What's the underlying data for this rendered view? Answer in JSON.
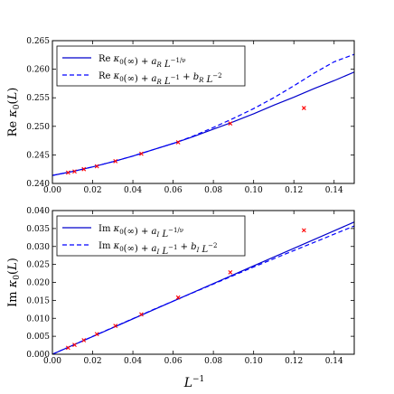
{
  "figure": {
    "xlabel_main": "L",
    "xlabel_exp": "−1"
  },
  "chart_data": [
    {
      "type": "line",
      "title": "",
      "xlabel": "",
      "ylabel": "Re κ0(L)",
      "xlim": [
        0.0,
        0.15
      ],
      "ylim": [
        0.24,
        0.265
      ],
      "xticks": [
        "0.00",
        "0.02",
        "0.04",
        "0.06",
        "0.08",
        "0.10",
        "0.12",
        "0.14"
      ],
      "xtick_values": [
        0.0,
        0.02,
        0.04,
        0.06,
        0.08,
        0.1,
        0.12,
        0.14
      ],
      "yticks": [
        "0.240",
        "0.245",
        "0.250",
        "0.255",
        "0.260",
        "0.265"
      ],
      "ytick_values": [
        0.24,
        0.245,
        0.25,
        0.255,
        0.26,
        0.265
      ],
      "legend_position": "top-left",
      "legend": [
        {
          "style": "solid",
          "color": "#0000cc",
          "text": "Re κ0(∞) + aR L−1/ν"
        },
        {
          "style": "dashed",
          "color": "#0000ff",
          "text": "Re κ0(∞) + aR L−1 + bR L−2"
        }
      ],
      "series": [
        {
          "style": "solid",
          "color": "#0000cc",
          "x": [
            0.0,
            0.01,
            0.02,
            0.03,
            0.04,
            0.05,
            0.06,
            0.07,
            0.08,
            0.09,
            0.1,
            0.11,
            0.12,
            0.13,
            0.14,
            0.15
          ],
          "y": [
            0.2414,
            0.2421,
            0.2429,
            0.2438,
            0.2448,
            0.2459,
            0.247,
            0.2482,
            0.2495,
            0.2508,
            0.2522,
            0.2537,
            0.2551,
            0.2566,
            0.258,
            0.2595
          ]
        },
        {
          "style": "dashed",
          "color": "#0000ff",
          "x": [
            0.0,
            0.01,
            0.02,
            0.03,
            0.04,
            0.05,
            0.06,
            0.07,
            0.08,
            0.09,
            0.1,
            0.11,
            0.12,
            0.13,
            0.14,
            0.15
          ],
          "y": [
            0.2414,
            0.2421,
            0.2429,
            0.2438,
            0.2448,
            0.2459,
            0.247,
            0.2483,
            0.2498,
            0.2514,
            0.2531,
            0.255,
            0.2571,
            0.2593,
            0.2613,
            0.2626
          ]
        },
        {
          "style": "marker",
          "color": "#ff0000",
          "x": [
            0.0078,
            0.011,
            0.0156,
            0.0221,
            0.0313,
            0.0442,
            0.0625,
            0.0884,
            0.125
          ],
          "y": [
            0.2419,
            0.2421,
            0.2425,
            0.243,
            0.2439,
            0.2452,
            0.2472,
            0.2505,
            0.2532
          ]
        }
      ]
    },
    {
      "type": "line",
      "title": "",
      "xlabel": "L−1",
      "ylabel": "Im κ0(L)",
      "xlim": [
        0.0,
        0.15
      ],
      "ylim": [
        0.0,
        0.04
      ],
      "xticks": [
        "0.00",
        "0.02",
        "0.04",
        "0.06",
        "0.08",
        "0.10",
        "0.12",
        "0.14"
      ],
      "xtick_values": [
        0.0,
        0.02,
        0.04,
        0.06,
        0.08,
        0.1,
        0.12,
        0.14
      ],
      "yticks": [
        "0.000",
        "0.005",
        "0.010",
        "0.015",
        "0.020",
        "0.025",
        "0.030",
        "0.035",
        "0.040"
      ],
      "ytick_values": [
        0.0,
        0.005,
        0.01,
        0.015,
        0.02,
        0.025,
        0.03,
        0.035,
        0.04
      ],
      "legend_position": "top-left",
      "legend": [
        {
          "style": "solid",
          "color": "#0000cc",
          "text": "Im κ0(∞) + aI L−1/ν"
        },
        {
          "style": "dashed",
          "color": "#0000ff",
          "text": "Im κ0(∞) + aI L−1 + bI L−2"
        }
      ],
      "series": [
        {
          "style": "solid",
          "color": "#0000cc",
          "x": [
            0.0,
            0.05,
            0.1,
            0.15
          ],
          "y": [
            0.0,
            0.0123,
            0.0246,
            0.0368
          ]
        },
        {
          "style": "dashed",
          "color": "#0000ff",
          "x": [
            0.0,
            0.05,
            0.1,
            0.15
          ],
          "y": [
            0.0,
            0.0124,
            0.0243,
            0.0357
          ]
        },
        {
          "style": "marker",
          "color": "#ff0000",
          "x": [
            0.0078,
            0.011,
            0.0156,
            0.0221,
            0.0313,
            0.0442,
            0.0625,
            0.0884,
            0.125
          ],
          "y": [
            0.0018,
            0.0026,
            0.0039,
            0.0056,
            0.0079,
            0.0111,
            0.0158,
            0.0228,
            0.0345
          ]
        }
      ]
    }
  ]
}
